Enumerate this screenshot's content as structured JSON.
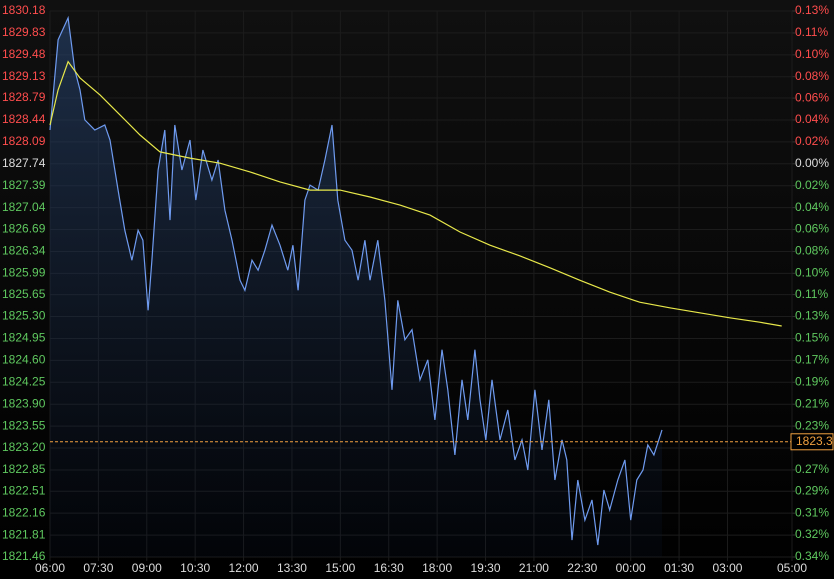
{
  "chart_data": {
    "type": "line",
    "xlim": [
      0,
      23
    ],
    "xticks": [
      {
        "value": 0,
        "label": "06:00"
      },
      {
        "value": 1.5,
        "label": "07:30"
      },
      {
        "value": 3,
        "label": "09:00"
      },
      {
        "value": 4.5,
        "label": "10:30"
      },
      {
        "value": 6,
        "label": "12:00"
      },
      {
        "value": 7.5,
        "label": "13:30"
      },
      {
        "value": 9,
        "label": "15:00"
      },
      {
        "value": 10.5,
        "label": "16:30"
      },
      {
        "value": 12,
        "label": "18:00"
      },
      {
        "value": 13.5,
        "label": "19:30"
      },
      {
        "value": 15,
        "label": "21:00"
      },
      {
        "value": 16.5,
        "label": "22:30"
      },
      {
        "value": 18,
        "label": "00:00"
      },
      {
        "value": 19.5,
        "label": "01:30"
      },
      {
        "value": 21,
        "label": "03:00"
      },
      {
        "value": 23,
        "label": "05:00"
      }
    ],
    "ylim": [
      1821.46,
      1830.18
    ],
    "yticks": [
      1830.18,
      1829.83,
      1829.48,
      1829.13,
      1828.79,
      1828.44,
      1828.09,
      1827.74,
      1827.39,
      1827.04,
      1826.69,
      1826.34,
      1825.99,
      1825.65,
      {
        "value": 1825.3,
        "label": "1825.30"
      },
      1824.95,
      {
        "value": 1824.6,
        "label": "1824.60"
      },
      1824.25,
      {
        "value": 1823.9,
        "label": "1823.90"
      },
      1823.55,
      {
        "value": 1823.2,
        "label": "1823.20"
      },
      1822.85,
      1822.51,
      1822.16,
      1821.81,
      1821.46
    ],
    "y2lim": [
      -0.3436,
      0.1335
    ],
    "y2ticks": [
      {
        "value": 0.1335,
        "label": "0.13%"
      },
      {
        "value": 0.1143,
        "label": "0.11%"
      },
      {
        "value": 0.0952,
        "label": "0.10%"
      },
      {
        "value": 0.0761,
        "label": "0.08%"
      },
      {
        "value": 0.0574,
        "label": "0.06%"
      },
      {
        "value": 0.0383,
        "label": "0.04%"
      },
      {
        "value": 0.0191,
        "label": "0.02%"
      },
      {
        "value": 0,
        "label": "0.00%"
      },
      {
        "value": -0.0191,
        "label": "0.02%"
      },
      {
        "value": -0.0383,
        "label": "0.04%"
      },
      {
        "value": -0.0574,
        "label": "0.06%"
      },
      {
        "value": -0.0766,
        "label": "0.08%"
      },
      {
        "value": -0.0957,
        "label": "0.10%"
      },
      {
        "value": -0.1143,
        "label": "0.11%"
      },
      {
        "value": -0.1335,
        "label": "0.13%"
      },
      {
        "value": -0.1526,
        "label": "0.15%"
      },
      {
        "value": -0.1718,
        "label": "0.17%"
      },
      {
        "value": -0.1909,
        "label": "0.19%"
      },
      {
        "value": -0.2101,
        "label": "0.21%"
      },
      {
        "value": -0.2292,
        "label": "0.23%"
      },
      {
        "value": -0.2675,
        "label": "0.27%"
      },
      {
        "value": -0.2861,
        "label": "0.29%"
      },
      {
        "value": -0.3053,
        "label": "0.31%"
      },
      {
        "value": -0.3244,
        "label": "0.32%"
      },
      {
        "value": -0.3436,
        "label": "0.34%"
      }
    ],
    "grid": true,
    "up_color": "#ff4d4d",
    "down_color": "#5fc85f",
    "neutral_color": "#dddddd",
    "series": [
      {
        "color": "#6f9bf0",
        "fill": true,
        "x": [
          0,
          0.25,
          0.56,
          0.77,
          0.93,
          1.08,
          1.39,
          1.7,
          1.86,
          2.11,
          2.32,
          2.54,
          2.73,
          2.88,
          3.04,
          3.16,
          3.35,
          3.56,
          3.72,
          3.87,
          4.09,
          4.34,
          4.52,
          4.74,
          5.02,
          5.21,
          5.42,
          5.64,
          5.89,
          6.04,
          6.26,
          6.45,
          6.66,
          6.88,
          7.13,
          7.37,
          7.53,
          7.69,
          7.9,
          8.06,
          8.31,
          8.52,
          8.74,
          8.92,
          9.14,
          9.36,
          9.55,
          9.76,
          9.92,
          10.16,
          10.38,
          10.6,
          10.78,
          11,
          11.22,
          11.47,
          11.71,
          11.93,
          12.15,
          12.33,
          12.55,
          12.77,
          12.95,
          13.17,
          13.33,
          13.51,
          13.7,
          13.95,
          14.19,
          14.41,
          14.63,
          14.81,
          15.03,
          15.25,
          15.46,
          15.65,
          15.87,
          16.02,
          16.18,
          16.36,
          16.58,
          16.8,
          16.98,
          17.17,
          17.35,
          17.6,
          17.82,
          18,
          18.19,
          18.38,
          18.53,
          18.72,
          18.97
        ],
        "values": [
          1828.28,
          1829.72,
          1830.07,
          1829.24,
          1828.92,
          1828.44,
          1828.28,
          1828.36,
          1828.12,
          1827.32,
          1826.68,
          1826.2,
          1826.68,
          1826.52,
          1825.4,
          1826.2,
          1827.64,
          1828.28,
          1826.84,
          1828.36,
          1827.64,
          1828.12,
          1827.16,
          1827.96,
          1827.48,
          1827.8,
          1827,
          1826.52,
          1825.88,
          1825.72,
          1826.2,
          1826.04,
          1826.36,
          1826.76,
          1826.44,
          1826.04,
          1826.44,
          1825.72,
          1827.16,
          1827.4,
          1827.32,
          1827.8,
          1828.36,
          1827.16,
          1826.52,
          1826.36,
          1825.88,
          1826.52,
          1825.88,
          1826.52,
          1825.56,
          1824.13,
          1825.56,
          1824.93,
          1825.09,
          1824.29,
          1824.61,
          1823.65,
          1824.77,
          1824.13,
          1823.09,
          1824.29,
          1823.65,
          1824.77,
          1823.97,
          1823.33,
          1824.29,
          1823.33,
          1823.81,
          1823.01,
          1823.33,
          1822.85,
          1824.13,
          1823.17,
          1823.97,
          1822.69,
          1823.33,
          1823.01,
          1821.73,
          1822.69,
          1822.05,
          1822.37,
          1821.65,
          1822.53,
          1822.21,
          1822.69,
          1823.01,
          1822.05,
          1822.69,
          1822.85,
          1823.25,
          1823.09,
          1823.49
        ]
      },
      {
        "color": "#e8e84a",
        "fill": false,
        "x": [
          0,
          0.25,
          0.56,
          0.93,
          1.55,
          2.17,
          2.79,
          3.41,
          4.34,
          5.27,
          6.2,
          7.13,
          8.06,
          8.99,
          9.92,
          10.85,
          11.78,
          12.71,
          13.64,
          14.56,
          15.49,
          16.42,
          17.35,
          18.28,
          19.21,
          20.14,
          21.07,
          22,
          22.68
        ],
        "values": [
          1828.36,
          1828.92,
          1829.37,
          1829.11,
          1828.84,
          1828.52,
          1828.2,
          1827.93,
          1827.83,
          1827.75,
          1827.61,
          1827.45,
          1827.32,
          1827.32,
          1827.21,
          1827.08,
          1826.92,
          1826.65,
          1826.44,
          1826.27,
          1826.08,
          1825.88,
          1825.69,
          1825.53,
          1825.44,
          1825.36,
          1825.28,
          1825.21,
          1825.15
        ]
      }
    ],
    "last_price": 1823.3,
    "last_price_color": "#f0a040"
  }
}
